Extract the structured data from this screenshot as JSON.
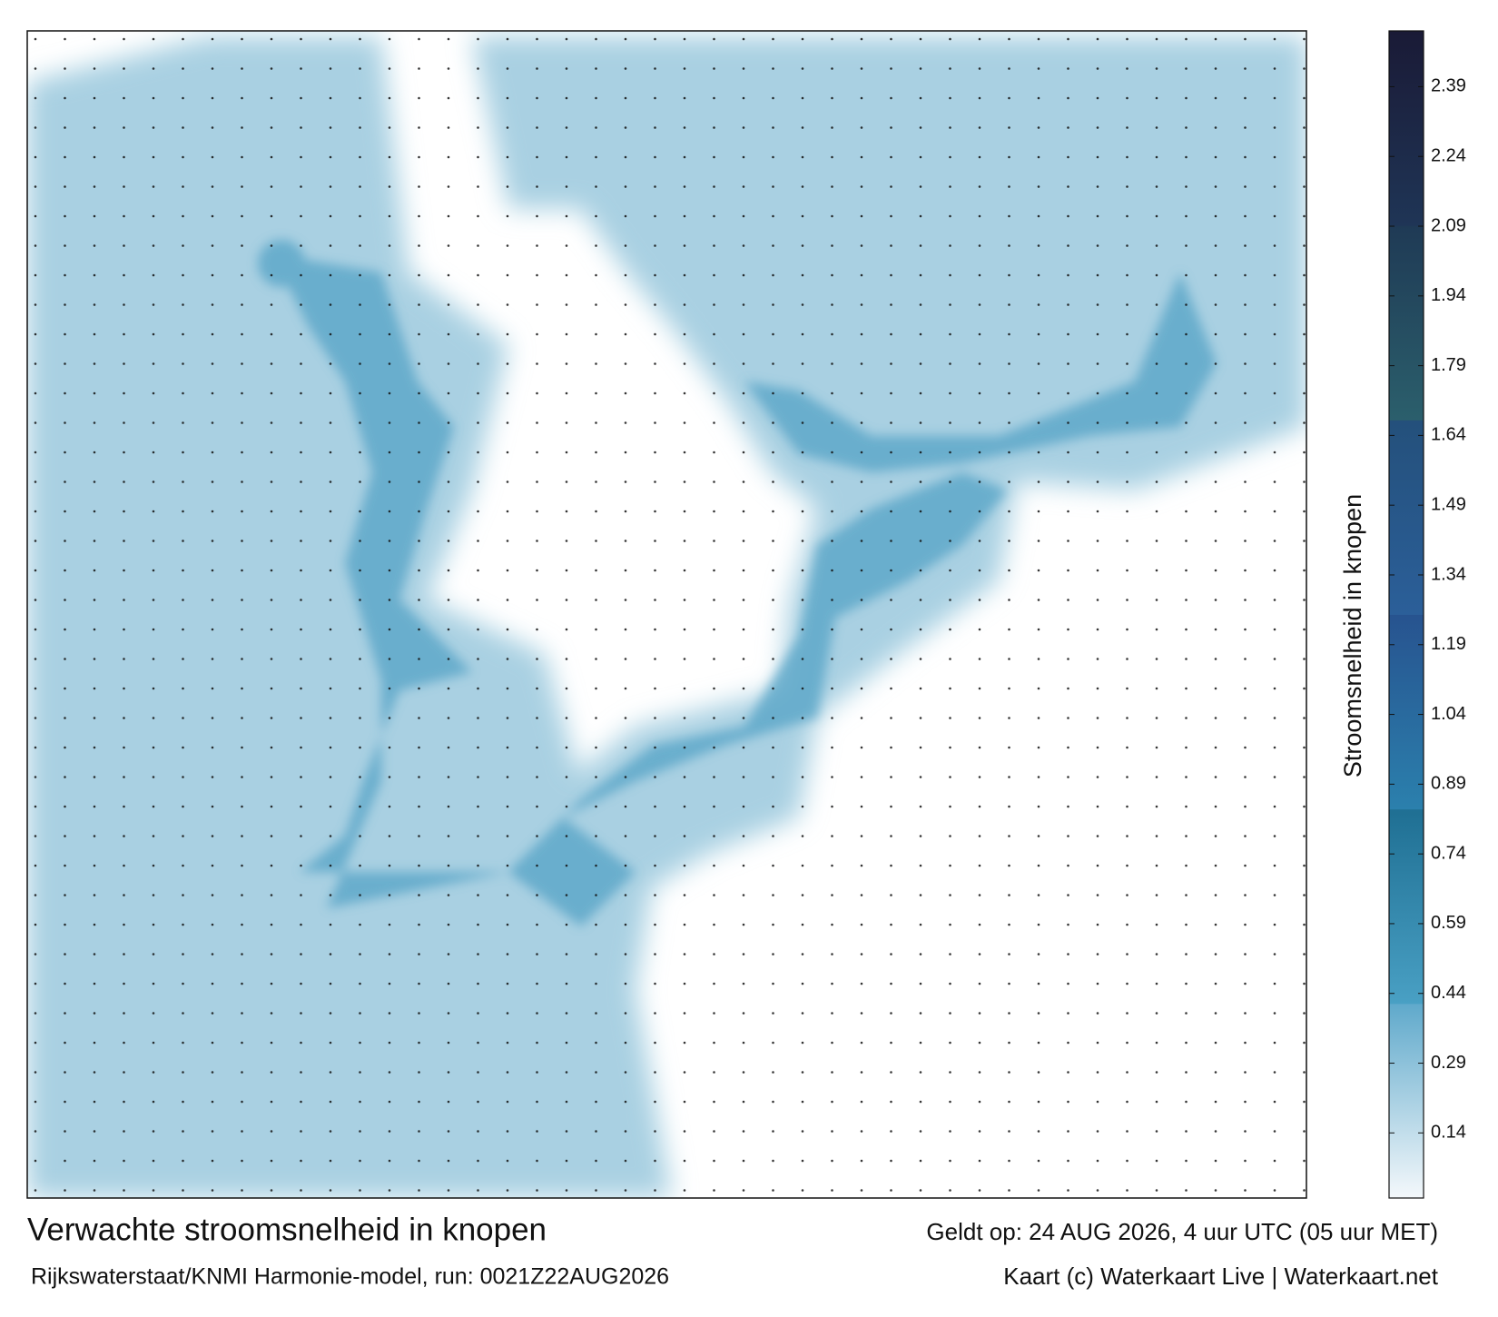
{
  "header": {
    "title": "Verwachte stroomsnelheid in knopen",
    "valid_time": "Geldt op: 24 AUG 2026, 4 uur UTC (05 uur MET)",
    "model": "Rijkswaterstaat/KNMI Harmonie-model, run: 0021Z22AUG2026",
    "credit": "Kaart (c) Waterkaart Live | Waterkaart.net"
  },
  "colorbar": {
    "label": "Stroomsnelheid in knopen",
    "lim": [
      0,
      2.51
    ],
    "ticks": [
      0.14,
      0.29,
      0.44,
      0.59,
      0.74,
      0.89,
      1.04,
      1.19,
      1.34,
      1.49,
      1.64,
      1.79,
      1.94,
      2.09,
      2.24,
      2.39
    ],
    "colors": [
      [
        "#f4f8fb",
        "#5fa9cb"
      ],
      [
        "#49a0c4",
        "#1f6f93"
      ],
      [
        "#2b80ad",
        "#27538f"
      ],
      [
        "#2b5f99",
        "#24507b"
      ],
      [
        "#2b5f6c",
        "#1f3a55"
      ],
      [
        "#1f3556",
        "#1a1a36"
      ]
    ]
  }
}
